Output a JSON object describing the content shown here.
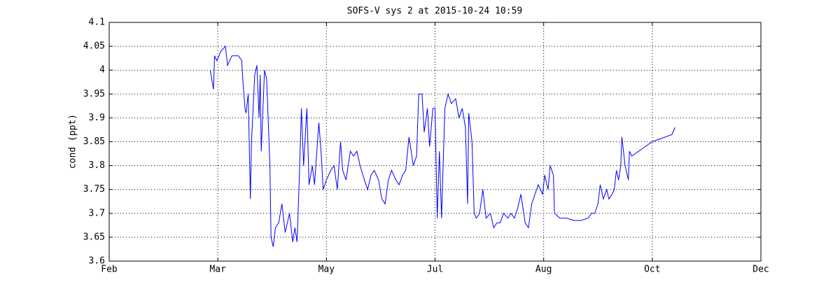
{
  "chart_data": {
    "type": "line",
    "title": "SOFS-V sys 2 at 2015-10-24 10:59",
    "y_label": "cond (ppt)",
    "xlim": [
      0,
      6
    ],
    "xticks": [
      {
        "value": 0,
        "label": "Feb"
      },
      {
        "value": 1,
        "label": "Mar"
      },
      {
        "value": 2,
        "label": "May"
      },
      {
        "value": 3,
        "label": "Jul"
      },
      {
        "value": 4,
        "label": "Aug"
      },
      {
        "value": 5,
        "label": "Oct"
      },
      {
        "value": 6,
        "label": "Dec"
      }
    ],
    "ylim": [
      3.6,
      4.1
    ],
    "yticks": [
      3.6,
      3.65,
      3.7,
      3.75,
      3.8,
      3.85,
      3.9,
      3.95,
      4,
      4.05,
      4.1
    ],
    "grid": true,
    "series": [
      {
        "name": "cond",
        "color": "#0000ff",
        "x": [
          0.93,
          0.96,
          0.97,
          0.99,
          1.03,
          1.07,
          1.09,
          1.13,
          1.19,
          1.22,
          1.23,
          1.25,
          1.26,
          1.28,
          1.3,
          1.31,
          1.34,
          1.36,
          1.38,
          1.39,
          1.4,
          1.43,
          1.45,
          1.48,
          1.49,
          1.51,
          1.53,
          1.56,
          1.59,
          1.62,
          1.66,
          1.69,
          1.71,
          1.73,
          1.75,
          1.77,
          1.79,
          1.82,
          1.84,
          1.87,
          1.89,
          1.93,
          1.95,
          1.97,
          2.0,
          2.04,
          2.07,
          2.1,
          2.13,
          2.15,
          2.18,
          2.22,
          2.25,
          2.28,
          2.31,
          2.35,
          2.38,
          2.41,
          2.44,
          2.48,
          2.51,
          2.54,
          2.57,
          2.6,
          2.64,
          2.67,
          2.7,
          2.73,
          2.76,
          2.8,
          2.83,
          2.85,
          2.88,
          2.9,
          2.93,
          2.95,
          2.98,
          3.0,
          3.02,
          3.04,
          3.06,
          3.09,
          3.12,
          3.15,
          3.19,
          3.22,
          3.25,
          3.28,
          3.3,
          3.31,
          3.34,
          3.36,
          3.38,
          3.41,
          3.44,
          3.47,
          3.51,
          3.54,
          3.57,
          3.6,
          3.63,
          3.67,
          3.7,
          3.73,
          3.76,
          3.79,
          3.83,
          3.86,
          3.89,
          3.92,
          3.95,
          3.99,
          4.01,
          4.04,
          4.06,
          4.09,
          4.1,
          4.15,
          4.21,
          4.28,
          4.34,
          4.41,
          4.44,
          4.47,
          4.5,
          4.52,
          4.55,
          4.58,
          4.6,
          4.63,
          4.65,
          4.67,
          4.69,
          4.71,
          4.72,
          4.75,
          4.78,
          4.79,
          4.81,
          5.0,
          5.18,
          5.21
        ],
        "values": [
          4.0,
          3.96,
          4.03,
          4.02,
          4.04,
          4.05,
          4.01,
          4.03,
          4.03,
          4.02,
          3.98,
          3.92,
          3.91,
          3.95,
          3.73,
          3.85,
          3.99,
          4.01,
          3.9,
          3.99,
          3.83,
          4.0,
          3.98,
          3.8,
          3.65,
          3.63,
          3.67,
          3.68,
          3.72,
          3.66,
          3.7,
          3.64,
          3.67,
          3.64,
          3.77,
          3.92,
          3.8,
          3.92,
          3.76,
          3.8,
          3.76,
          3.89,
          3.83,
          3.75,
          3.77,
          3.79,
          3.8,
          3.75,
          3.85,
          3.79,
          3.77,
          3.83,
          3.82,
          3.83,
          3.8,
          3.77,
          3.75,
          3.78,
          3.79,
          3.77,
          3.73,
          3.72,
          3.77,
          3.79,
          3.77,
          3.76,
          3.78,
          3.79,
          3.86,
          3.8,
          3.82,
          3.95,
          3.95,
          3.87,
          3.92,
          3.84,
          3.92,
          3.92,
          3.69,
          3.83,
          3.69,
          3.92,
          3.95,
          3.93,
          3.94,
          3.9,
          3.92,
          3.88,
          3.72,
          3.91,
          3.85,
          3.7,
          3.69,
          3.7,
          3.75,
          3.69,
          3.7,
          3.67,
          3.68,
          3.68,
          3.7,
          3.69,
          3.7,
          3.69,
          3.71,
          3.74,
          3.68,
          3.67,
          3.72,
          3.74,
          3.76,
          3.74,
          3.78,
          3.75,
          3.8,
          3.78,
          3.7,
          3.69,
          3.69,
          3.685,
          3.685,
          3.69,
          3.7,
          3.7,
          3.72,
          3.76,
          3.73,
          3.75,
          3.73,
          3.74,
          3.75,
          3.79,
          3.77,
          3.8,
          3.86,
          3.8,
          3.77,
          3.83,
          3.82,
          3.85,
          3.865,
          3.88
        ]
      }
    ]
  }
}
